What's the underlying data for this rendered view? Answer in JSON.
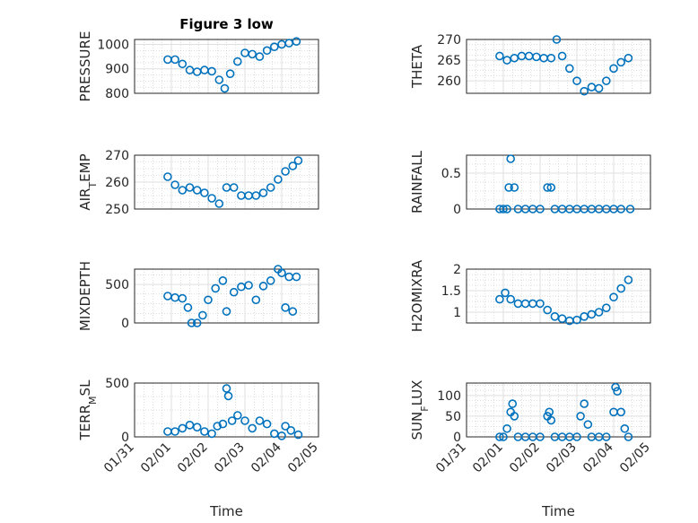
{
  "figure": {
    "title": "Figure 3 low",
    "accent_color": "#0072BD",
    "grid": "major and minor"
  },
  "chart_data": [
    {
      "type": "scatter",
      "ylabel": "PRESSURE",
      "title": "Figure 3 low",
      "xlabel": "",
      "ylim": [
        800,
        1020
      ],
      "yticks": [
        800,
        900,
        1000
      ],
      "xticks": [
        "01/31",
        "02/01",
        "02/02",
        "02/03",
        "02/04",
        "02/05"
      ],
      "show_xtick_labels": false,
      "series": [
        {
          "values": [
            [
              0.9,
              938
            ],
            [
              1.1,
              938
            ],
            [
              1.3,
              920
            ],
            [
              1.5,
              895
            ],
            [
              1.7,
              888
            ],
            [
              1.9,
              895
            ],
            [
              2.1,
              890
            ],
            [
              2.3,
              855
            ],
            [
              2.45,
              820
            ],
            [
              2.6,
              880
            ],
            [
              2.8,
              930
            ],
            [
              3.0,
              965
            ],
            [
              3.2,
              960
            ],
            [
              3.4,
              950
            ],
            [
              3.6,
              975
            ],
            [
              3.8,
              990
            ],
            [
              4.0,
              1000
            ],
            [
              4.2,
              1005
            ],
            [
              4.4,
              1012
            ]
          ]
        }
      ]
    },
    {
      "type": "scatter",
      "ylabel": "THETA",
      "xlabel": "",
      "ylim": [
        257,
        270
      ],
      "yticks": [
        260,
        265,
        270
      ],
      "xticks": [
        "01/31",
        "02/01",
        "02/02",
        "02/03",
        "02/04",
        "02/05"
      ],
      "show_xtick_labels": false,
      "series": [
        {
          "values": [
            [
              0.9,
              266
            ],
            [
              1.1,
              265
            ],
            [
              1.3,
              265.5
            ],
            [
              1.5,
              266
            ],
            [
              1.7,
              266
            ],
            [
              1.9,
              265.8
            ],
            [
              2.1,
              265.5
            ],
            [
              2.3,
              265.5
            ],
            [
              2.45,
              270
            ],
            [
              2.6,
              266
            ],
            [
              2.8,
              263
            ],
            [
              3.0,
              260
            ],
            [
              3.2,
              257.5
            ],
            [
              3.4,
              258.5
            ],
            [
              3.6,
              258.2
            ],
            [
              3.8,
              260
            ],
            [
              4.0,
              263
            ],
            [
              4.2,
              264.5
            ],
            [
              4.4,
              265.5
            ]
          ]
        }
      ]
    },
    {
      "type": "scatter",
      "ylabel": "AIR_TEMP",
      "xlabel": "",
      "ylim": [
        250,
        270
      ],
      "yticks": [
        250,
        260,
        270
      ],
      "xticks": [
        "01/31",
        "02/01",
        "02/02",
        "02/03",
        "02/04",
        "02/05"
      ],
      "show_xtick_labels": false,
      "series": [
        {
          "values": [
            [
              0.9,
              262
            ],
            [
              1.1,
              259
            ],
            [
              1.3,
              257
            ],
            [
              1.5,
              258
            ],
            [
              1.7,
              257
            ],
            [
              1.9,
              256
            ],
            [
              2.1,
              254
            ],
            [
              2.3,
              252
            ],
            [
              2.5,
              258
            ],
            [
              2.7,
              258
            ],
            [
              2.9,
              255
            ],
            [
              3.1,
              255
            ],
            [
              3.3,
              255
            ],
            [
              3.5,
              256
            ],
            [
              3.7,
              258
            ],
            [
              3.9,
              261
            ],
            [
              4.1,
              264
            ],
            [
              4.3,
              266
            ],
            [
              4.45,
              268
            ]
          ]
        }
      ]
    },
    {
      "type": "scatter",
      "ylabel": "RAINFALL",
      "xlabel": "",
      "ylim": [
        0,
        0.75
      ],
      "yticks": [
        0,
        0.5
      ],
      "xticks": [
        "01/31",
        "02/01",
        "02/02",
        "02/03",
        "02/04",
        "02/05"
      ],
      "show_xtick_labels": false,
      "series": [
        {
          "values": [
            [
              0.9,
              0
            ],
            [
              1.0,
              0
            ],
            [
              1.1,
              0
            ],
            [
              1.15,
              0.3
            ],
            [
              1.2,
              0.7
            ],
            [
              1.3,
              0.3
            ],
            [
              1.4,
              0
            ],
            [
              1.6,
              0
            ],
            [
              1.8,
              0
            ],
            [
              2.0,
              0
            ],
            [
              2.2,
              0.3
            ],
            [
              2.3,
              0.3
            ],
            [
              2.4,
              0
            ],
            [
              2.6,
              0
            ],
            [
              2.8,
              0
            ],
            [
              3.0,
              0
            ],
            [
              3.2,
              0
            ],
            [
              3.4,
              0
            ],
            [
              3.6,
              0
            ],
            [
              3.8,
              0
            ],
            [
              4.0,
              0
            ],
            [
              4.2,
              0
            ],
            [
              4.45,
              0
            ]
          ]
        }
      ]
    },
    {
      "type": "scatter",
      "ylabel": "MIXDEPTH",
      "xlabel": "",
      "ylim": [
        0,
        700
      ],
      "yticks": [
        0,
        500
      ],
      "xticks": [
        "01/31",
        "02/01",
        "02/02",
        "02/03",
        "02/04",
        "02/05"
      ],
      "show_xtick_labels": false,
      "series": [
        {
          "values": [
            [
              0.9,
              350
            ],
            [
              1.1,
              330
            ],
            [
              1.3,
              320
            ],
            [
              1.45,
              200
            ],
            [
              1.55,
              0
            ],
            [
              1.7,
              0
            ],
            [
              1.85,
              100
            ],
            [
              2.0,
              300
            ],
            [
              2.2,
              450
            ],
            [
              2.4,
              550
            ],
            [
              2.5,
              150
            ],
            [
              2.7,
              400
            ],
            [
              2.9,
              470
            ],
            [
              3.1,
              490
            ],
            [
              3.3,
              300
            ],
            [
              3.5,
              480
            ],
            [
              3.7,
              550
            ],
            [
              3.9,
              700
            ],
            [
              4.0,
              650
            ],
            [
              4.1,
              200
            ],
            [
              4.2,
              600
            ],
            [
              4.3,
              150
            ],
            [
              4.4,
              600
            ]
          ]
        }
      ]
    },
    {
      "type": "scatter",
      "ylabel": "H2OMIXRA",
      "xlabel": "",
      "ylim": [
        0.75,
        2.0
      ],
      "yticks": [
        1,
        1.5,
        2
      ],
      "xticks": [
        "01/31",
        "02/01",
        "02/02",
        "02/03",
        "02/04",
        "02/05"
      ],
      "show_xtick_labels": false,
      "series": [
        {
          "values": [
            [
              0.9,
              1.3
            ],
            [
              1.05,
              1.45
            ],
            [
              1.2,
              1.3
            ],
            [
              1.4,
              1.2
            ],
            [
              1.6,
              1.2
            ],
            [
              1.8,
              1.2
            ],
            [
              2.0,
              1.2
            ],
            [
              2.2,
              1.05
            ],
            [
              2.4,
              0.9
            ],
            [
              2.6,
              0.85
            ],
            [
              2.8,
              0.8
            ],
            [
              3.0,
              0.82
            ],
            [
              3.2,
              0.9
            ],
            [
              3.4,
              0.95
            ],
            [
              3.6,
              1.0
            ],
            [
              3.8,
              1.1
            ],
            [
              4.0,
              1.35
            ],
            [
              4.2,
              1.55
            ],
            [
              4.4,
              1.75
            ]
          ]
        }
      ]
    },
    {
      "type": "scatter",
      "ylabel": "TERR_MSL",
      "xlabel": "Time",
      "ylim": [
        0,
        500
      ],
      "yticks": [
        0,
        500
      ],
      "xticks": [
        "01/31",
        "02/01",
        "02/02",
        "02/03",
        "02/04",
        "02/05"
      ],
      "show_xtick_labels": true,
      "series": [
        {
          "values": [
            [
              0.9,
              50
            ],
            [
              1.1,
              50
            ],
            [
              1.3,
              80
            ],
            [
              1.5,
              110
            ],
            [
              1.7,
              90
            ],
            [
              1.9,
              50
            ],
            [
              2.1,
              30
            ],
            [
              2.25,
              100
            ],
            [
              2.4,
              120
            ],
            [
              2.5,
              450
            ],
            [
              2.55,
              380
            ],
            [
              2.65,
              150
            ],
            [
              2.8,
              200
            ],
            [
              3.0,
              150
            ],
            [
              3.2,
              80
            ],
            [
              3.4,
              150
            ],
            [
              3.6,
              120
            ],
            [
              3.8,
              30
            ],
            [
              4.0,
              10
            ],
            [
              4.1,
              100
            ],
            [
              4.25,
              60
            ],
            [
              4.45,
              20
            ]
          ]
        }
      ]
    },
    {
      "type": "scatter",
      "ylabel": "SUN_FLUX",
      "xlabel": "Time",
      "ylim": [
        0,
        130
      ],
      "yticks": [
        0,
        50,
        100
      ],
      "xticks": [
        "01/31",
        "02/01",
        "02/02",
        "02/03",
        "02/04",
        "02/05"
      ],
      "show_xtick_labels": true,
      "series": [
        {
          "values": [
            [
              0.9,
              0
            ],
            [
              1.0,
              0
            ],
            [
              1.1,
              20
            ],
            [
              1.2,
              60
            ],
            [
              1.25,
              80
            ],
            [
              1.3,
              50
            ],
            [
              1.4,
              0
            ],
            [
              1.6,
              0
            ],
            [
              1.8,
              0
            ],
            [
              2.0,
              0
            ],
            [
              2.2,
              50
            ],
            [
              2.25,
              60
            ],
            [
              2.3,
              40
            ],
            [
              2.4,
              0
            ],
            [
              2.6,
              0
            ],
            [
              2.8,
              0
            ],
            [
              3.0,
              0
            ],
            [
              3.1,
              50
            ],
            [
              3.2,
              80
            ],
            [
              3.3,
              30
            ],
            [
              3.4,
              0
            ],
            [
              3.6,
              0
            ],
            [
              3.8,
              0
            ],
            [
              4.0,
              60
            ],
            [
              4.05,
              120
            ],
            [
              4.1,
              110
            ],
            [
              4.2,
              60
            ],
            [
              4.3,
              20
            ],
            [
              4.4,
              0
            ]
          ]
        }
      ]
    }
  ]
}
